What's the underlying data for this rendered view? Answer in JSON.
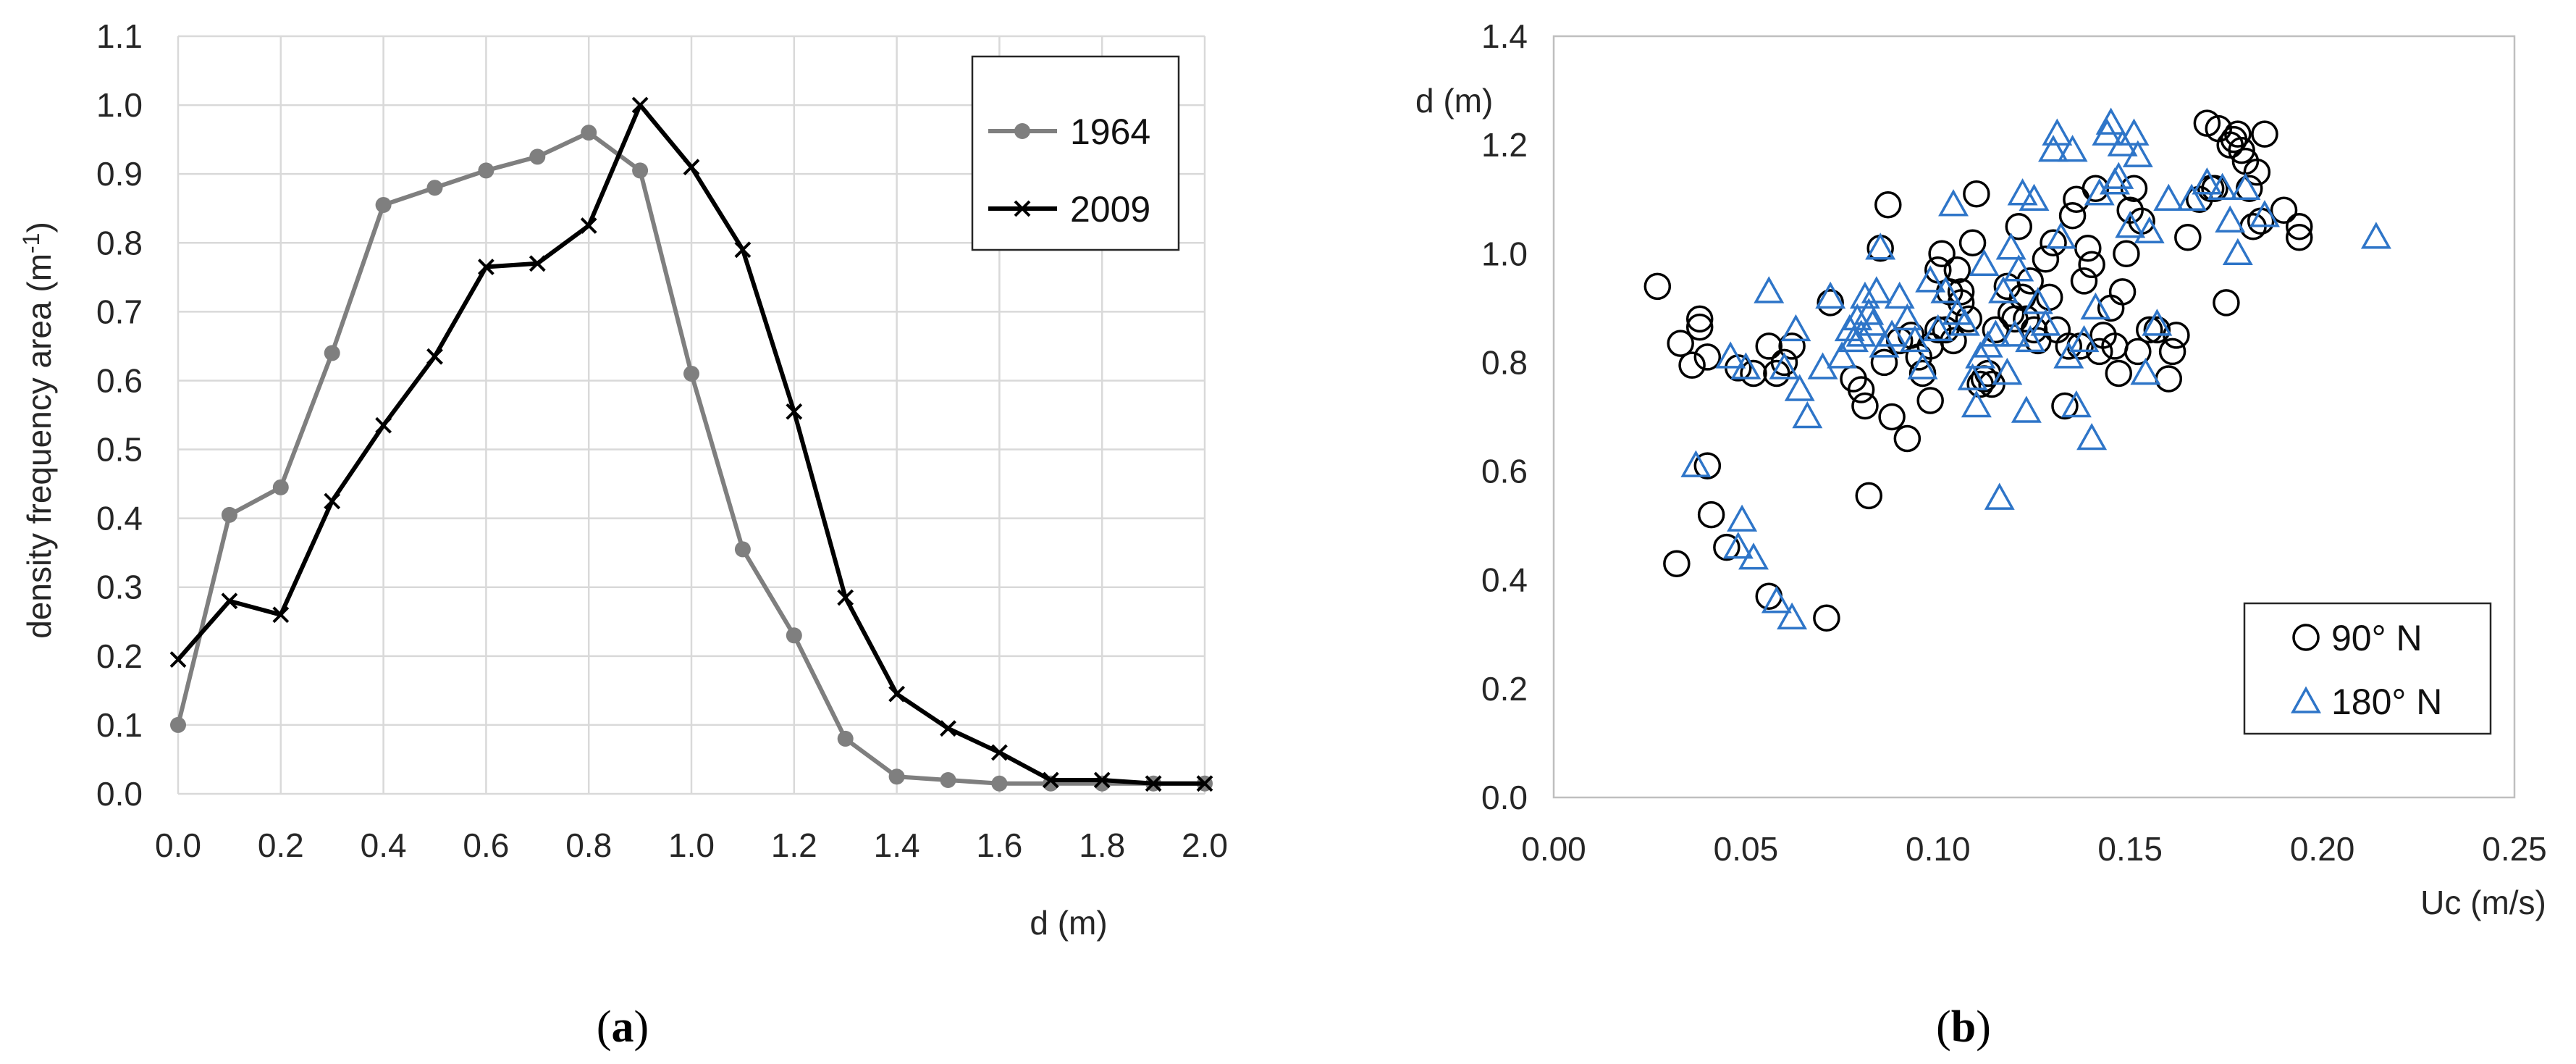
{
  "chart_data": [
    {
      "type": "line",
      "caption": {
        "open": "(",
        "letter": "a",
        "close": ")"
      },
      "title": "",
      "xlabel": "d (m)",
      "ylabel": {
        "text": "density frequency area (m",
        "sup": "-1",
        "close": ")"
      },
      "xlim": [
        0,
        2.0
      ],
      "ylim": [
        0,
        1.1
      ],
      "x_ticks": [
        "0.0",
        "0.2",
        "0.4",
        "0.6",
        "0.8",
        "1.0",
        "1.2",
        "1.4",
        "1.6",
        "1.8",
        "2.0"
      ],
      "y_ticks": [
        "0.0",
        "0.1",
        "0.2",
        "0.3",
        "0.4",
        "0.5",
        "0.6",
        "0.7",
        "0.8",
        "0.9",
        "1.0",
        "1.1"
      ],
      "grid": true,
      "legend_position": "top-right",
      "series": [
        {
          "name": "1964",
          "color": "#7f7f7f",
          "marker": "circle",
          "x": [
            0.0,
            0.1,
            0.2,
            0.3,
            0.4,
            0.5,
            0.6,
            0.7,
            0.8,
            0.9,
            1.0,
            1.1,
            1.2,
            1.3,
            1.4,
            1.5,
            1.6,
            1.7,
            1.8,
            1.9,
            2.0
          ],
          "values": [
            0.1,
            0.405,
            0.445,
            0.64,
            0.855,
            0.88,
            0.905,
            0.925,
            0.96,
            0.905,
            0.61,
            0.355,
            0.23,
            0.08,
            0.025,
            0.02,
            0.015,
            0.015,
            0.015,
            0.015,
            0.015
          ]
        },
        {
          "name": "2009",
          "color": "#000000",
          "marker": "x",
          "x": [
            0.0,
            0.1,
            0.2,
            0.3,
            0.4,
            0.5,
            0.6,
            0.7,
            0.8,
            0.9,
            1.0,
            1.1,
            1.2,
            1.3,
            1.4,
            1.5,
            1.6,
            1.7,
            1.8,
            1.9,
            2.0
          ],
          "values": [
            0.195,
            0.28,
            0.26,
            0.425,
            0.535,
            0.635,
            0.765,
            0.77,
            0.825,
            1.0,
            0.91,
            0.79,
            0.555,
            0.285,
            0.145,
            0.095,
            0.06,
            0.02,
            0.02,
            0.015,
            0.015
          ]
        }
      ]
    },
    {
      "type": "scatter",
      "caption": {
        "open": "(",
        "letter": "b",
        "close": ")"
      },
      "title": "",
      "xlabel": "Uc (m/s)",
      "ylabel": "d (m)",
      "xlim": [
        0,
        0.25
      ],
      "ylim": [
        0,
        1.4
      ],
      "x_ticks": [
        "0.00",
        "0.05",
        "0.10",
        "0.15",
        "0.20",
        "0.25"
      ],
      "y_ticks": [
        "0.0",
        "0.2",
        "0.4",
        "0.6",
        "0.8",
        "1.0",
        "1.2",
        "1.4"
      ],
      "grid": false,
      "legend_position": "bottom-right",
      "series": [
        {
          "name": "90° N",
          "color": "#000000",
          "marker": "circle-open",
          "points": [
            [
              0.027,
              0.94
            ],
            [
              0.032,
              0.43
            ],
            [
              0.033,
              0.835
            ],
            [
              0.036,
              0.795
            ],
            [
              0.038,
              0.88
            ],
            [
              0.038,
              0.865
            ],
            [
              0.04,
              0.81
            ],
            [
              0.04,
              0.61
            ],
            [
              0.041,
              0.52
            ],
            [
              0.045,
              0.46
            ],
            [
              0.048,
              0.79
            ],
            [
              0.052,
              0.78
            ],
            [
              0.056,
              0.37
            ],
            [
              0.056,
              0.83
            ],
            [
              0.058,
              0.78
            ],
            [
              0.06,
              0.8
            ],
            [
              0.062,
              0.83
            ],
            [
              0.071,
              0.33
            ],
            [
              0.072,
              0.91
            ],
            [
              0.078,
              0.77
            ],
            [
              0.08,
              0.75
            ],
            [
              0.081,
              0.72
            ],
            [
              0.082,
              0.555
            ],
            [
              0.085,
              1.01
            ],
            [
              0.086,
              0.8
            ],
            [
              0.087,
              1.09
            ],
            [
              0.088,
              0.7
            ],
            [
              0.09,
              0.84
            ],
            [
              0.092,
              0.66
            ],
            [
              0.093,
              0.85
            ],
            [
              0.095,
              0.81
            ],
            [
              0.096,
              0.78
            ],
            [
              0.098,
              0.73
            ],
            [
              0.098,
              0.83
            ],
            [
              0.1,
              0.97
            ],
            [
              0.1,
              0.86
            ],
            [
              0.101,
              1.0
            ],
            [
              0.102,
              0.86
            ],
            [
              0.103,
              0.93
            ],
            [
              0.104,
              0.84
            ],
            [
              0.105,
              0.97
            ],
            [
              0.106,
              0.91
            ],
            [
              0.106,
              0.93
            ],
            [
              0.108,
              0.88
            ],
            [
              0.109,
              1.02
            ],
            [
              0.11,
              1.11
            ],
            [
              0.111,
              0.76
            ],
            [
              0.112,
              0.77
            ],
            [
              0.113,
              0.78
            ],
            [
              0.114,
              0.76
            ],
            [
              0.115,
              0.86
            ],
            [
              0.118,
              0.94
            ],
            [
              0.119,
              0.89
            ],
            [
              0.12,
              0.88
            ],
            [
              0.121,
              1.05
            ],
            [
              0.122,
              0.92
            ],
            [
              0.123,
              0.88
            ],
            [
              0.124,
              0.95
            ],
            [
              0.125,
              0.86
            ],
            [
              0.126,
              0.84
            ],
            [
              0.128,
              0.99
            ],
            [
              0.129,
              0.92
            ],
            [
              0.13,
              1.02
            ],
            [
              0.131,
              0.86
            ],
            [
              0.133,
              0.72
            ],
            [
              0.134,
              0.83
            ],
            [
              0.135,
              1.07
            ],
            [
              0.136,
              1.1
            ],
            [
              0.137,
              0.83
            ],
            [
              0.138,
              0.95
            ],
            [
              0.139,
              1.01
            ],
            [
              0.14,
              0.98
            ],
            [
              0.141,
              1.12
            ],
            [
              0.142,
              0.82
            ],
            [
              0.143,
              0.85
            ],
            [
              0.145,
              0.9
            ],
            [
              0.146,
              0.83
            ],
            [
              0.147,
              0.78
            ],
            [
              0.148,
              0.93
            ],
            [
              0.149,
              1.0
            ],
            [
              0.15,
              1.08
            ],
            [
              0.151,
              1.12
            ],
            [
              0.152,
              0.82
            ],
            [
              0.153,
              1.06
            ],
            [
              0.155,
              0.86
            ],
            [
              0.157,
              0.86
            ],
            [
              0.16,
              0.77
            ],
            [
              0.161,
              0.82
            ],
            [
              0.162,
              0.85
            ],
            [
              0.165,
              1.03
            ],
            [
              0.168,
              1.1
            ],
            [
              0.17,
              1.24
            ],
            [
              0.171,
              1.12
            ],
            [
              0.172,
              1.12
            ],
            [
              0.173,
              1.23
            ],
            [
              0.175,
              0.91
            ],
            [
              0.176,
              1.2
            ],
            [
              0.177,
              1.21
            ],
            [
              0.178,
              1.22
            ],
            [
              0.179,
              1.19
            ],
            [
              0.18,
              1.17
            ],
            [
              0.181,
              1.12
            ],
            [
              0.182,
              1.05
            ],
            [
              0.183,
              1.15
            ],
            [
              0.184,
              1.06
            ],
            [
              0.185,
              1.22
            ],
            [
              0.19,
              1.08
            ],
            [
              0.194,
              1.05
            ],
            [
              0.194,
              1.03
            ]
          ]
        },
        {
          "name": "180° N",
          "color": "#2e75c8",
          "marker": "triangle-open",
          "points": [
            [
              0.037,
              0.61
            ],
            [
              0.046,
              0.81
            ],
            [
              0.048,
              0.46
            ],
            [
              0.049,
              0.51
            ],
            [
              0.05,
              0.79
            ],
            [
              0.052,
              0.44
            ],
            [
              0.056,
              0.93
            ],
            [
              0.058,
              0.36
            ],
            [
              0.06,
              0.79
            ],
            [
              0.062,
              0.33
            ],
            [
              0.063,
              0.86
            ],
            [
              0.064,
              0.75
            ],
            [
              0.066,
              0.7
            ],
            [
              0.07,
              0.79
            ],
            [
              0.072,
              0.92
            ],
            [
              0.075,
              0.81
            ],
            [
              0.077,
              0.86
            ],
            [
              0.078,
              0.84
            ],
            [
              0.079,
              0.88
            ],
            [
              0.08,
              0.85
            ],
            [
              0.081,
              0.92
            ],
            [
              0.082,
              0.89
            ],
            [
              0.083,
              0.87
            ],
            [
              0.084,
              0.93
            ],
            [
              0.085,
              1.01
            ],
            [
              0.086,
              0.83
            ],
            [
              0.088,
              0.85
            ],
            [
              0.09,
              0.92
            ],
            [
              0.092,
              0.88
            ],
            [
              0.094,
              0.84
            ],
            [
              0.096,
              0.79
            ],
            [
              0.098,
              0.95
            ],
            [
              0.1,
              0.86
            ],
            [
              0.102,
              0.93
            ],
            [
              0.104,
              1.09
            ],
            [
              0.105,
              0.89
            ],
            [
              0.107,
              0.87
            ],
            [
              0.109,
              0.77
            ],
            [
              0.11,
              0.72
            ],
            [
              0.111,
              0.81
            ],
            [
              0.112,
              0.98
            ],
            [
              0.113,
              0.83
            ],
            [
              0.115,
              0.85
            ],
            [
              0.116,
              0.55
            ],
            [
              0.117,
              0.93
            ],
            [
              0.118,
              0.78
            ],
            [
              0.119,
              1.01
            ],
            [
              0.12,
              0.85
            ],
            [
              0.121,
              0.97
            ],
            [
              0.122,
              1.11
            ],
            [
              0.123,
              0.71
            ],
            [
              0.124,
              0.84
            ],
            [
              0.125,
              1.1
            ],
            [
              0.126,
              0.91
            ],
            [
              0.128,
              0.87
            ],
            [
              0.13,
              1.19
            ],
            [
              0.131,
              1.22
            ],
            [
              0.132,
              1.03
            ],
            [
              0.134,
              0.81
            ],
            [
              0.135,
              1.19
            ],
            [
              0.136,
              0.72
            ],
            [
              0.138,
              0.84
            ],
            [
              0.14,
              0.66
            ],
            [
              0.141,
              0.9
            ],
            [
              0.142,
              1.11
            ],
            [
              0.144,
              1.22
            ],
            [
              0.145,
              1.24
            ],
            [
              0.146,
              1.13
            ],
            [
              0.147,
              1.14
            ],
            [
              0.148,
              1.2
            ],
            [
              0.15,
              1.05
            ],
            [
              0.151,
              1.22
            ],
            [
              0.152,
              1.18
            ],
            [
              0.154,
              0.78
            ],
            [
              0.155,
              1.04
            ],
            [
              0.157,
              0.87
            ],
            [
              0.16,
              1.1
            ],
            [
              0.166,
              1.1
            ],
            [
              0.17,
              1.13
            ],
            [
              0.174,
              1.12
            ],
            [
              0.176,
              1.06
            ],
            [
              0.178,
              1.0
            ],
            [
              0.18,
              1.12
            ],
            [
              0.185,
              1.07
            ],
            [
              0.214,
              1.03
            ]
          ]
        }
      ]
    }
  ]
}
